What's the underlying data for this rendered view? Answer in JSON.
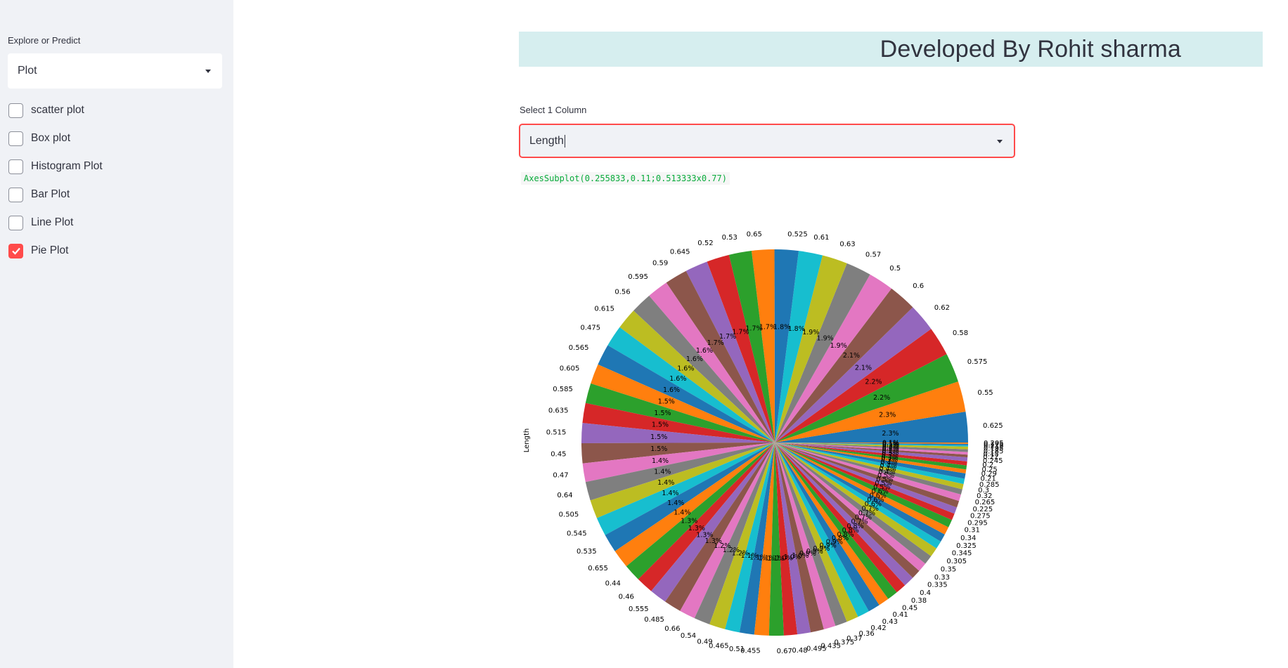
{
  "sidebar": {
    "label": "Explore or Predict",
    "select_value": "Plot",
    "options": [
      {
        "label": "scatter plot",
        "checked": false
      },
      {
        "label": "Box plot",
        "checked": false
      },
      {
        "label": "Histogram Plot",
        "checked": false
      },
      {
        "label": "Bar Plot",
        "checked": false
      },
      {
        "label": "Line Plot",
        "checked": false
      },
      {
        "label": "Pie Plot",
        "checked": true
      }
    ]
  },
  "main": {
    "header": "Developed By Rohit sharma",
    "select_label": "Select 1 Column",
    "select_value": "Length",
    "code_output": "AxesSubplot(0.255833,0.11;0.513333x0.77)"
  },
  "colors": {
    "accent": "#ff4b4b",
    "header_bg": "#d6eeef",
    "sidebar_bg": "#f0f2f6",
    "palette": [
      "#1f77b4",
      "#ff7f0e",
      "#2ca02c",
      "#d62728",
      "#9467bd",
      "#8c564b",
      "#e377c2",
      "#7f7f7f",
      "#bcbd22",
      "#17becf"
    ]
  },
  "chart_data": {
    "type": "pie",
    "ylabel": "Length",
    "categories": [
      "0.625",
      "0.55",
      "0.575",
      "0.58",
      "0.62",
      "0.6",
      "0.5",
      "0.57",
      "0.63",
      "0.61",
      "0.525",
      "0.65",
      "0.53",
      "0.52",
      "0.645",
      "0.59",
      "0.595",
      "0.56",
      "0.615",
      "0.475",
      "0.565",
      "0.605",
      "0.585",
      "0.635",
      "0.515",
      "0.45",
      "0.47",
      "0.64",
      "0.505",
      "0.545",
      "0.535",
      "0.655",
      "0.44",
      "0.46",
      "0.555",
      "0.485",
      "0.66",
      "0.54",
      "0.49",
      "0.465",
      "0.51",
      "0.455",
      "0.67",
      "0.48",
      "0.495",
      "0.435",
      "0.375",
      "0.37",
      "0.36",
      "0.42",
      "0.43",
      "0.41",
      "0.45",
      "0.38",
      "0.4",
      "0.335",
      "0.33",
      "0.35",
      "0.305",
      "0.345",
      "0.325",
      "0.34",
      "0.31",
      "0.295",
      "0.275",
      "0.225",
      "0.265",
      "0.32",
      "0.3",
      "0.285",
      "0.21",
      "0.29",
      "0.25",
      "0.2",
      "0.245",
      "0.22",
      "0.15",
      "0.185",
      "0.195",
      "0.215",
      "0.175",
      "0.205"
    ],
    "values": [
      2.3,
      2.3,
      2.2,
      2.2,
      2.1,
      2.1,
      1.9,
      1.9,
      1.9,
      1.8,
      1.8,
      1.7,
      1.7,
      1.7,
      1.7,
      1.7,
      1.6,
      1.6,
      1.6,
      1.6,
      1.6,
      1.5,
      1.5,
      1.5,
      1.5,
      1.5,
      1.4,
      1.4,
      1.4,
      1.4,
      1.4,
      1.4,
      1.3,
      1.3,
      1.3,
      1.3,
      1.2,
      1.2,
      1.2,
      1.1,
      1.1,
      1.1,
      1.1,
      1.0,
      1.0,
      1.0,
      0.9,
      0.9,
      0.9,
      0.9,
      0.9,
      0.8,
      0.8,
      0.8,
      0.8,
      0.7,
      0.7,
      0.7,
      0.7,
      0.6,
      0.6,
      0.6,
      0.6,
      0.5,
      0.5,
      0.5,
      0.5,
      0.4,
      0.4,
      0.4,
      0.4,
      0.3,
      0.3,
      0.3,
      0.3,
      0.2,
      0.2,
      0.2,
      0.2,
      0.1,
      0.1,
      0.1
    ]
  }
}
